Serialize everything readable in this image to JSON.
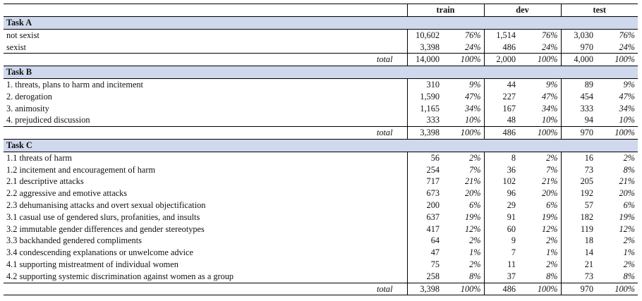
{
  "headers": {
    "train": "train",
    "dev": "dev",
    "test": "test"
  },
  "total_label": "total",
  "tasks": [
    {
      "name": "Task A",
      "rows": [
        {
          "label": "not sexist",
          "train_n": "10,602",
          "train_p": "76%",
          "dev_n": "1,514",
          "dev_p": "76%",
          "test_n": "3,030",
          "test_p": "76%"
        },
        {
          "label": "sexist",
          "train_n": "3,398",
          "train_p": "24%",
          "dev_n": "486",
          "dev_p": "24%",
          "test_n": "970",
          "test_p": "24%"
        }
      ],
      "total": {
        "train_n": "14,000",
        "train_p": "100%",
        "dev_n": "2,000",
        "dev_p": "100%",
        "test_n": "4,000",
        "test_p": "100%"
      }
    },
    {
      "name": "Task B",
      "rows": [
        {
          "label": "1. threats, plans to harm and incitement",
          "train_n": "310",
          "train_p": "9%",
          "dev_n": "44",
          "dev_p": "9%",
          "test_n": "89",
          "test_p": "9%"
        },
        {
          "label": "2. derogation",
          "train_n": "1,590",
          "train_p": "47%",
          "dev_n": "227",
          "dev_p": "47%",
          "test_n": "454",
          "test_p": "47%"
        },
        {
          "label": "3. animosity",
          "train_n": "1,165",
          "train_p": "34%",
          "dev_n": "167",
          "dev_p": "34%",
          "test_n": "333",
          "test_p": "34%"
        },
        {
          "label": "4. prejudiced discussion",
          "train_n": "333",
          "train_p": "10%",
          "dev_n": "48",
          "dev_p": "10%",
          "test_n": "94",
          "test_p": "10%"
        }
      ],
      "total": {
        "train_n": "3,398",
        "train_p": "100%",
        "dev_n": "486",
        "dev_p": "100%",
        "test_n": "970",
        "test_p": "100%"
      }
    },
    {
      "name": "Task C",
      "rows": [
        {
          "label": "1.1 threats of harm",
          "train_n": "56",
          "train_p": "2%",
          "dev_n": "8",
          "dev_p": "2%",
          "test_n": "16",
          "test_p": "2%"
        },
        {
          "label": "1.2 incitement and encouragement of harm",
          "train_n": "254",
          "train_p": "7%",
          "dev_n": "36",
          "dev_p": "7%",
          "test_n": "73",
          "test_p": "8%"
        },
        {
          "label": "2.1 descriptive attacks",
          "train_n": "717",
          "train_p": "21%",
          "dev_n": "102",
          "dev_p": "21%",
          "test_n": "205",
          "test_p": "21%"
        },
        {
          "label": "2.2 aggressive and emotive attacks",
          "train_n": "673",
          "train_p": "20%",
          "dev_n": "96",
          "dev_p": "20%",
          "test_n": "192",
          "test_p": "20%"
        },
        {
          "label": "2.3 dehumanising attacks and overt sexual objectification",
          "train_n": "200",
          "train_p": "6%",
          "dev_n": "29",
          "dev_p": "6%",
          "test_n": "57",
          "test_p": "6%"
        },
        {
          "label": "3.1 casual use of gendered slurs, profanities, and insults",
          "train_n": "637",
          "train_p": "19%",
          "dev_n": "91",
          "dev_p": "19%",
          "test_n": "182",
          "test_p": "19%"
        },
        {
          "label": "3.2 immutable gender differences and gender stereotypes",
          "train_n": "417",
          "train_p": "12%",
          "dev_n": "60",
          "dev_p": "12%",
          "test_n": "119",
          "test_p": "12%"
        },
        {
          "label": "3.3 backhanded gendered compliments",
          "train_n": "64",
          "train_p": "2%",
          "dev_n": "9",
          "dev_p": "2%",
          "test_n": "18",
          "test_p": "2%"
        },
        {
          "label": "3.4 condescending explanations or unwelcome advice",
          "train_n": "47",
          "train_p": "1%",
          "dev_n": "7",
          "dev_p": "1%",
          "test_n": "14",
          "test_p": "1%"
        },
        {
          "label": "4.1 supporting mistreatment of individual women",
          "train_n": "75",
          "train_p": "2%",
          "dev_n": "11",
          "dev_p": "2%",
          "test_n": "21",
          "test_p": "2%"
        },
        {
          "label": "4.2 supporting systemic discrimination against women as a group",
          "train_n": "258",
          "train_p": "8%",
          "dev_n": "37",
          "dev_p": "8%",
          "test_n": "73",
          "test_p": "8%"
        }
      ],
      "total": {
        "train_n": "3,398",
        "train_p": "100%",
        "dev_n": "486",
        "dev_p": "100%",
        "test_n": "970",
        "test_p": "100%"
      }
    }
  ]
}
